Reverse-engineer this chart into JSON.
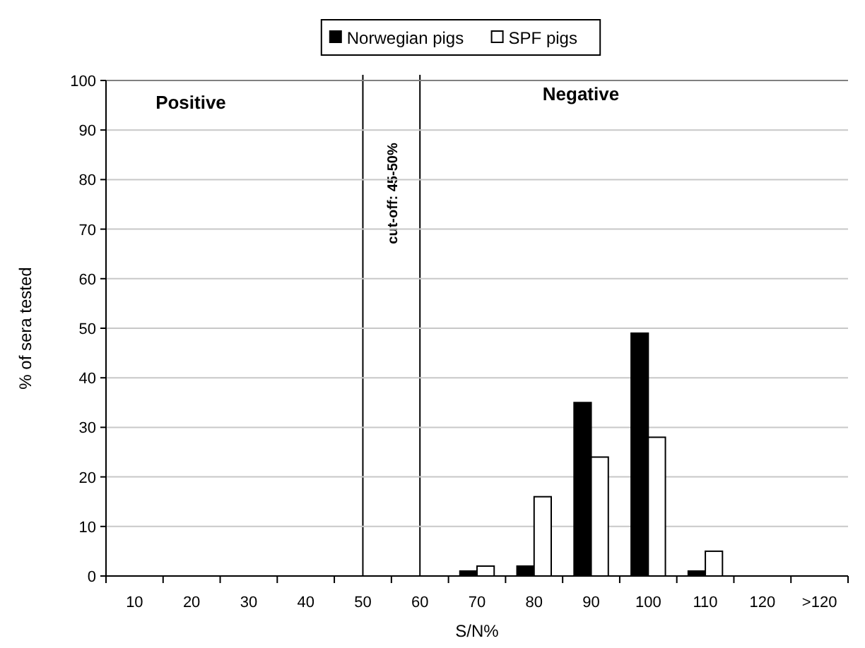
{
  "chart_data": {
    "type": "bar",
    "xlabel": "S/N%",
    "ylabel": "% of sera tested",
    "categories": [
      "10",
      "20",
      "30",
      "40",
      "50",
      "60",
      "70",
      "80",
      "90",
      "100",
      "110",
      "120",
      ">120"
    ],
    "series": [
      {
        "name": "Norwegian pigs",
        "color": "#000000",
        "values": [
          0,
          0,
          0,
          0,
          0,
          0,
          1,
          2,
          35,
          49,
          1,
          0,
          0
        ]
      },
      {
        "name": "SPF pigs",
        "color": "#ffffff",
        "values": [
          0,
          0,
          0,
          0,
          0,
          0,
          2,
          16,
          24,
          28,
          5,
          0,
          0
        ]
      }
    ],
    "ylim": [
      0,
      100
    ],
    "yticks": [
      0,
      10,
      20,
      30,
      40,
      50,
      60,
      70,
      80,
      90,
      100
    ],
    "grid": "y",
    "legend": "top",
    "ref_lines": [
      {
        "axis": "x",
        "value": "50",
        "label": "cut-off: 45-50%"
      },
      {
        "axis": "x",
        "value": "60"
      }
    ],
    "annotations": [
      "Positive",
      "Negative"
    ]
  }
}
